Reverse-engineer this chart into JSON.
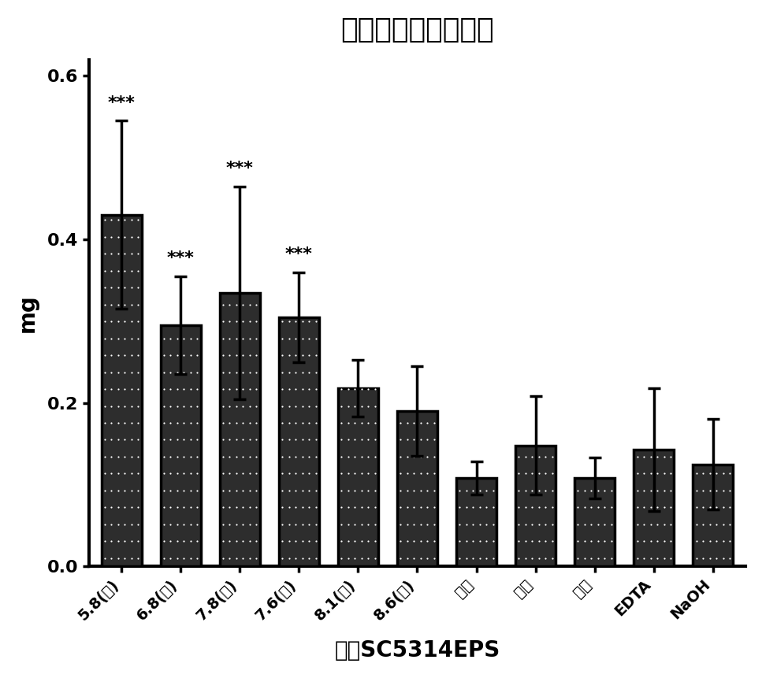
{
  "title": "静态脂质各方法比较",
  "xlabel": "静态SC5314EPS",
  "ylabel": "mg",
  "categories": [
    "5.8(酶)",
    "6.8(酶)",
    "7.8(酶)",
    "7.6(酶)",
    "8.1(酶)",
    "8.6(酶)",
    "水策",
    "甲醒",
    "乙醒",
    "EDTA",
    "NaOH"
  ],
  "values": [
    0.43,
    0.295,
    0.335,
    0.305,
    0.218,
    0.19,
    0.108,
    0.148,
    0.108,
    0.143,
    0.125
  ],
  "errors": [
    0.115,
    0.06,
    0.13,
    0.055,
    0.035,
    0.055,
    0.02,
    0.06,
    0.025,
    0.075,
    0.055
  ],
  "significance": [
    "***",
    "***",
    "***",
    "***",
    "",
    "",
    "",
    "",
    "",
    "",
    ""
  ],
  "ylim": [
    0,
    0.62
  ],
  "yticks": [
    0.0,
    0.2,
    0.4,
    0.6
  ],
  "background_color": "#ffffff",
  "title_fontsize": 26,
  "label_fontsize": 20,
  "tick_fontsize": 16,
  "sig_fontsize": 16,
  "xtick_fontsize": 14
}
